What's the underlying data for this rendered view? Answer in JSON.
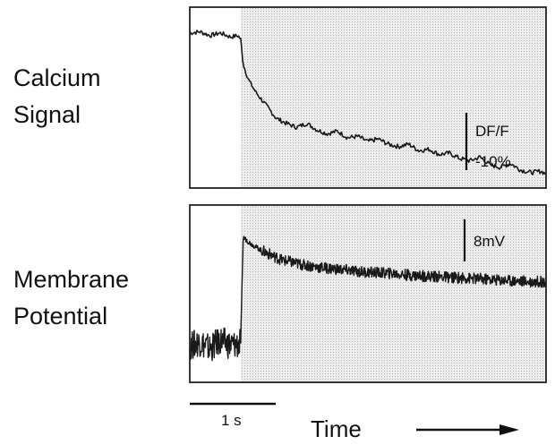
{
  "chart_data": [
    {
      "type": "line",
      "title": "",
      "row_label": [
        "Calcium",
        "Signal"
      ],
      "stimulus_onset_s": 1.0,
      "xlim": [
        0,
        7.0
      ],
      "ylim": [
        -12,
        2
      ],
      "scale_bar": {
        "label": [
          "DF/F",
          "-10%"
        ],
        "value": 10,
        "units": "%"
      },
      "colors": {
        "trace": "#1a1a1a",
        "stim_shade": "#e6e6e6",
        "frame": "#222222"
      },
      "series": [
        {
          "x": [
            0.0,
            0.2,
            0.4,
            0.6,
            0.8,
            0.95,
            1.0,
            1.05,
            1.15,
            1.3,
            1.5,
            1.7,
            1.9,
            2.1,
            2.3,
            2.5,
            2.7,
            2.9,
            3.1,
            3.3,
            3.5,
            3.7,
            3.9,
            4.1,
            4.3,
            4.5,
            4.7,
            4.9,
            5.1,
            5.3,
            5.5,
            5.7,
            5.9,
            6.1,
            6.3,
            6.5,
            6.7,
            6.9,
            7.0
          ],
          "y": [
            0.0,
            0.1,
            -0.2,
            0.0,
            -0.3,
            -0.2,
            -0.5,
            -2.4,
            -3.6,
            -4.6,
            -5.6,
            -6.6,
            -7.0,
            -7.3,
            -7.0,
            -7.5,
            -7.8,
            -7.6,
            -8.1,
            -8.0,
            -8.4,
            -8.2,
            -8.6,
            -8.8,
            -8.6,
            -9.1,
            -9.0,
            -9.4,
            -9.3,
            -9.7,
            -9.9,
            -9.6,
            -10.2,
            -10.4,
            -10.1,
            -10.6,
            -10.8,
            -10.7,
            -10.9
          ]
        }
      ]
    },
    {
      "type": "line",
      "title": "",
      "row_label": [
        "Membrane",
        "Potential"
      ],
      "stimulus_onset_s": 1.0,
      "xlim": [
        0,
        7.0
      ],
      "ylim": [
        -2,
        20
      ],
      "scale_bar": {
        "label": [
          "8mV"
        ],
        "value": 8,
        "units": "mV"
      },
      "colors": {
        "trace": "#1a1a1a",
        "stim_shade": "#e6e6e6",
        "frame": "#222222"
      },
      "series": [
        {
          "x": [
            0.0,
            0.2,
            0.4,
            0.6,
            0.8,
            0.98,
            1.0,
            1.05,
            1.2,
            1.4,
            1.6,
            1.8,
            2.0,
            2.2,
            2.5,
            2.8,
            3.1,
            3.4,
            3.7,
            4.0,
            4.3,
            4.6,
            4.9,
            5.2,
            5.5,
            5.8,
            6.1,
            6.4,
            6.7,
            7.0
          ],
          "y": [
            2.5,
            3.0,
            2.2,
            3.2,
            2.6,
            2.8,
            3.0,
            16.0,
            15.2,
            14.4,
            13.8,
            13.2,
            12.9,
            12.6,
            12.3,
            12.1,
            11.9,
            11.7,
            11.6,
            11.5,
            11.3,
            11.2,
            11.1,
            11.0,
            10.9,
            10.8,
            10.7,
            10.6,
            10.5,
            10.5
          ]
        }
      ]
    }
  ],
  "footer": {
    "time_bar_label": "1 s",
    "time_bar_value_s": 1,
    "axis_label": "Time"
  }
}
